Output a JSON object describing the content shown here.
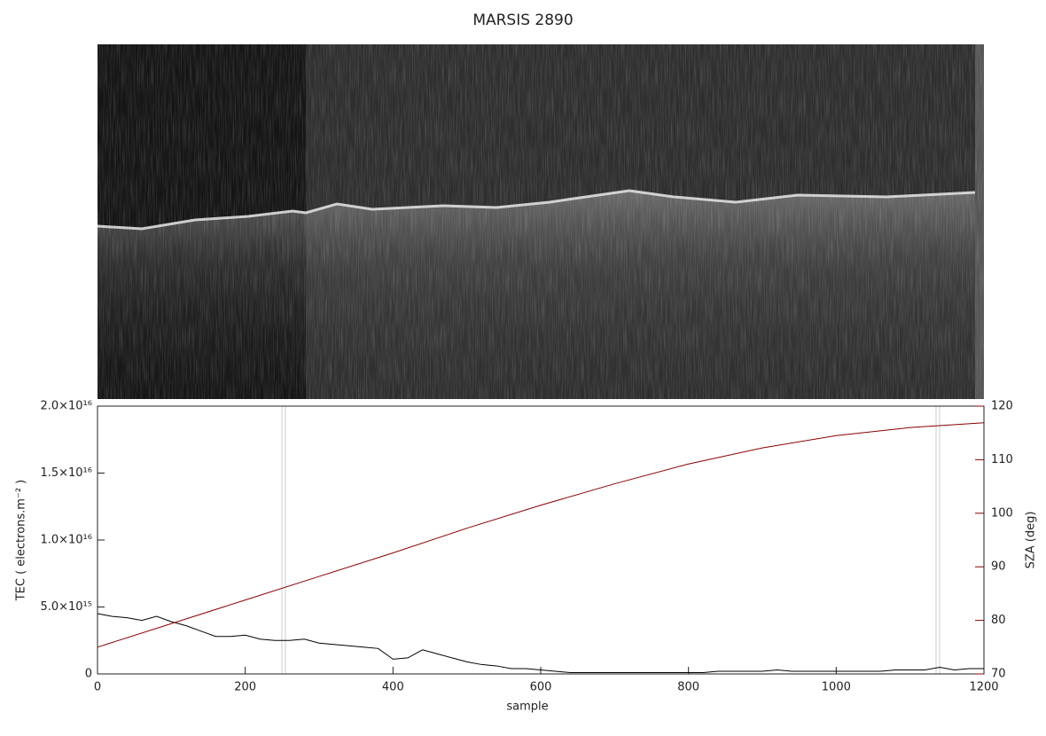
{
  "chart_data": {
    "type": "line",
    "title": "MARSIS 2890",
    "xlabel": "sample",
    "ylabel": "TEC ( electrons.m⁻² )",
    "y2label": "SZA (deg)",
    "xlim": [
      0,
      1200
    ],
    "xticks": [
      0,
      200,
      400,
      600,
      800,
      1000,
      1200
    ],
    "ylim": [
      0,
      2e+16
    ],
    "yticks": [
      0,
      {
        "value": 5000000000000000.0,
        "label": "5.0×10¹⁵"
      },
      {
        "value": 1e+16,
        "label": "1.0×10¹⁶"
      },
      {
        "value": 1.5e+16,
        "label": "1.5×10¹⁶"
      },
      {
        "value": 2e+16,
        "label": "2.0×10¹⁶"
      }
    ],
    "y2lim": [
      70,
      120
    ],
    "y2ticks": [
      70,
      80,
      90,
      100,
      110,
      120
    ],
    "y2color": "#8b0000",
    "series": [
      {
        "color": "#000000",
        "x": [
          0,
          20,
          40,
          60,
          80,
          100,
          120,
          140,
          160,
          180,
          200,
          220,
          240,
          260,
          280,
          300,
          320,
          340,
          360,
          380,
          400,
          420,
          440,
          460,
          480,
          500,
          520,
          540,
          560,
          580,
          600,
          620,
          640,
          660,
          680,
          700,
          720,
          740,
          760,
          780,
          800,
          820,
          840,
          860,
          880,
          900,
          920,
          940,
          960,
          980,
          1000,
          1020,
          1040,
          1060,
          1080,
          1100,
          1120,
          1140,
          1160,
          1180,
          1200
        ],
        "values": [
          4500000000000000.0,
          4300000000000000.0,
          4200000000000000.0,
          4000000000000000.0,
          4300000000000000.0,
          3900000000000000.0,
          3600000000000000.0,
          3200000000000000.0,
          2800000000000000.0,
          2800000000000000.0,
          2900000000000000.0,
          2600000000000000.0,
          2500000000000000.0,
          2500000000000000.0,
          2600000000000000.0,
          2300000000000000.0,
          2200000000000000.0,
          2100000000000000.0,
          2000000000000000.0,
          1900000000000000.0,
          1100000000000000.0,
          1200000000000000.0,
          1800000000000000.0,
          1500000000000000.0,
          1200000000000000.0,
          900000000000000.0,
          700000000000000.0,
          600000000000000.0,
          400000000000000.0,
          400000000000000.0,
          300000000000000.0,
          200000000000000.0,
          100000000000000.0,
          100000000000000.0,
          100000000000000.0,
          100000000000000.0,
          100000000000000.0,
          100000000000000.0,
          100000000000000.0,
          100000000000000.0,
          100000000000000.0,
          100000000000000.0,
          200000000000000.0,
          200000000000000.0,
          200000000000000.0,
          200000000000000.0,
          300000000000000.0,
          200000000000000.0,
          200000000000000.0,
          200000000000000.0,
          200000000000000.0,
          200000000000000.0,
          200000000000000.0,
          200000000000000.0,
          300000000000000.0,
          300000000000000.0,
          300000000000000.0,
          500000000000000.0,
          300000000000000.0,
          400000000000000.0,
          400000000000000.0
        ]
      },
      {
        "color": "#8b0000",
        "axis": "y2",
        "x": [
          0,
          100,
          200,
          300,
          400,
          500,
          600,
          700,
          800,
          900,
          1000,
          1100,
          1200
        ],
        "values": [
          75,
          79.4,
          83.8,
          88.2,
          92.6,
          97.2,
          101.5,
          105.5,
          109.2,
          112.2,
          114.5,
          116,
          116.9
        ]
      }
    ]
  }
}
